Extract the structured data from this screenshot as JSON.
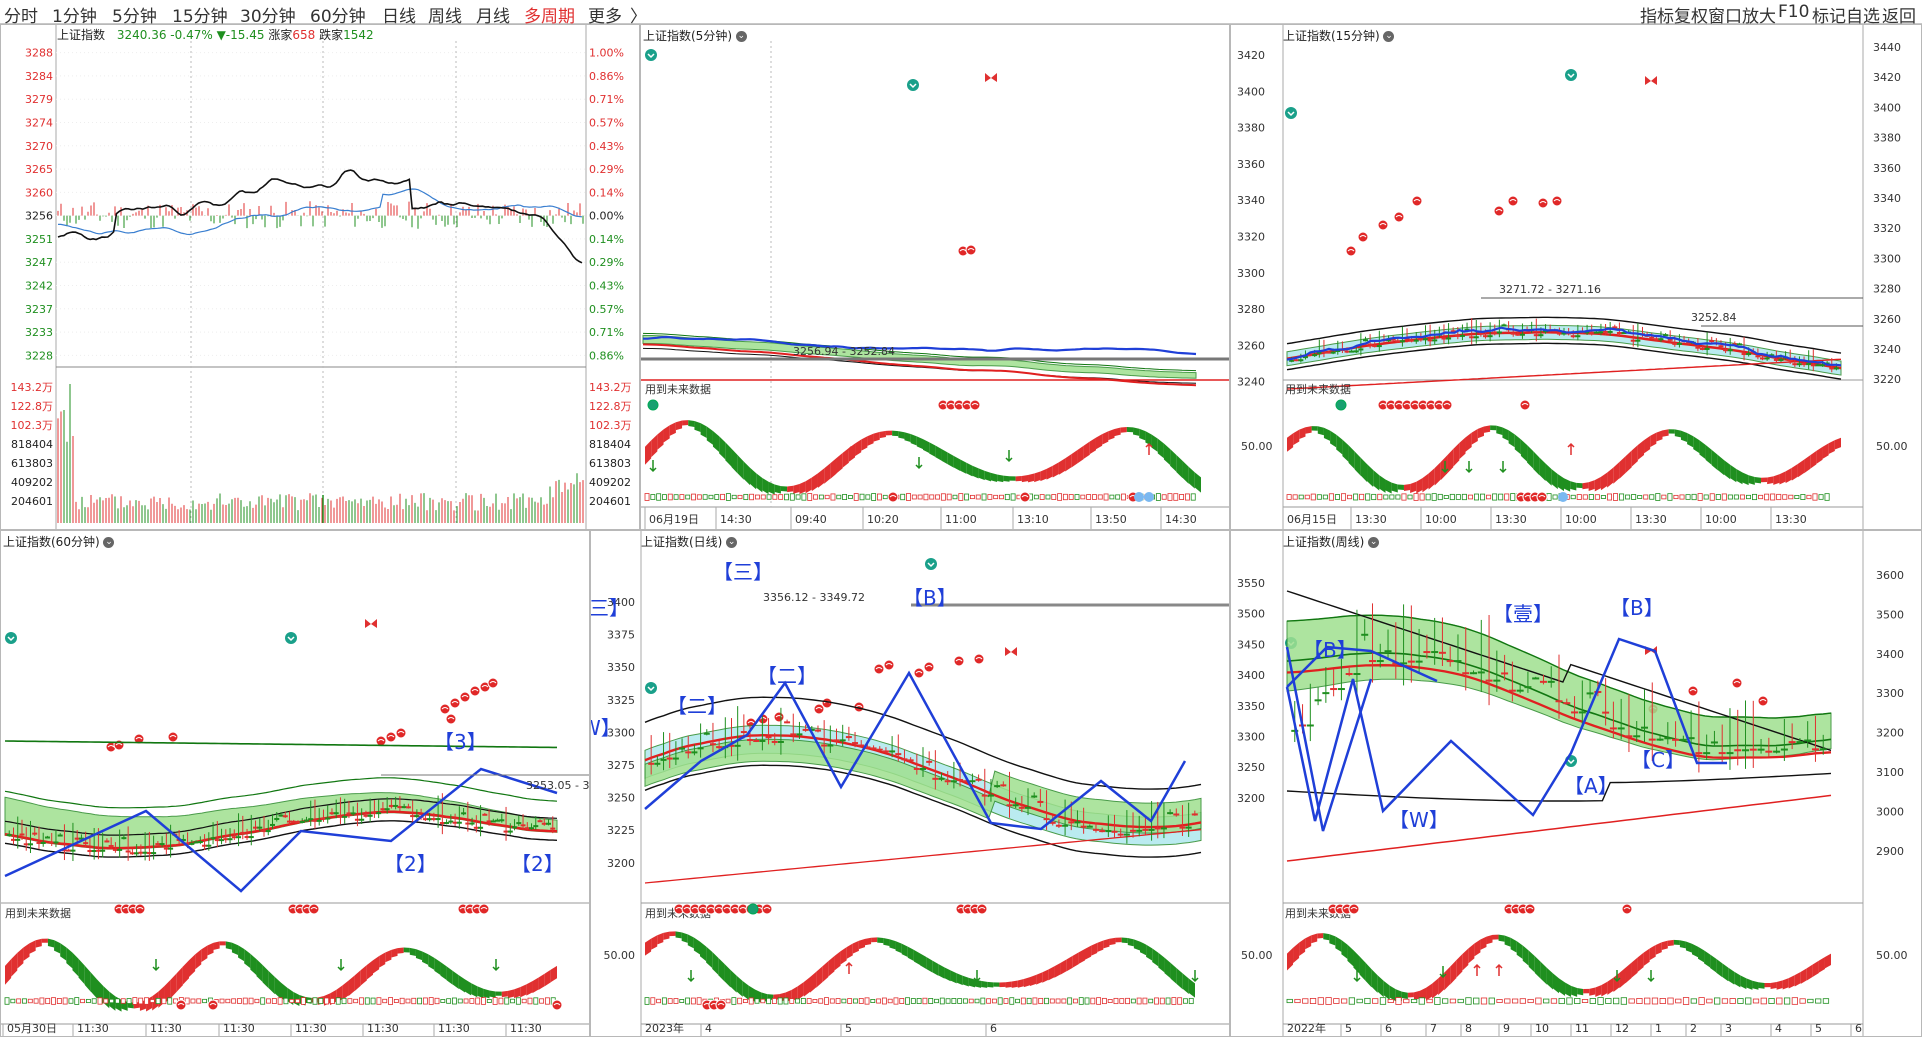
{
  "toolbar": {
    "periods": [
      "分时",
      "1分钟",
      "5分钟",
      "15分钟",
      "30分钟",
      "60分钟",
      "日线",
      "周线",
      "月线",
      "多周期",
      "更多"
    ],
    "active": "多周期",
    "more_arrow": "〉",
    "right_tools": [
      "指标",
      "复权",
      "窗口",
      "放大",
      "F10",
      "标记",
      "自选",
      "返回"
    ]
  },
  "colors": {
    "up": "#e03030",
    "down": "#1f8f1f",
    "blue": "#1f3fd8",
    "band": "#9fe08f",
    "ma": "#e02020",
    "black": "#111111"
  },
  "icons": [
    "more-down-icon",
    "butterfly-icon",
    "down-arrow-icon",
    "up-arrow-icon",
    "coin-icon"
  ],
  "panels": {
    "intraday": {
      "title": "上证指数",
      "price": "3240.36",
      "change_pct": "-0.47%",
      "change": "▼-15.45",
      "up_label": "涨家",
      "up_count": "658",
      "down_label": "跌家",
      "down_count": "1542",
      "left_axis": [
        "3288",
        "3284",
        "3279",
        "3274",
        "3270",
        "3265",
        "3260",
        "3256",
        "3251",
        "3247",
        "3242",
        "3237",
        "3233",
        "3228"
      ],
      "right_axis": [
        "1.00%",
        "0.86%",
        "0.71%",
        "0.57%",
        "0.43%",
        "0.29%",
        "0.14%",
        "0.00%",
        "0.14%",
        "0.29%",
        "0.43%",
        "0.57%",
        "0.71%",
        "0.86%"
      ],
      "vol_axis": [
        "143.2万",
        "122.8万",
        "102.3万",
        "818404",
        "613803",
        "409202",
        "204601"
      ]
    },
    "m5": {
      "title": "上证指数(5分钟)",
      "level_label": "3256.94 - 3252.84",
      "sub_label": "用到未来数据",
      "x_labels": [
        "06月19日",
        "14:30",
        "09:40",
        "10:20",
        "11:00",
        "13:10",
        "13:50",
        "14:30"
      ]
    },
    "m15": {
      "title": "上证指数(15分钟)",
      "level_label": "3271.72 - 3271.16",
      "level_label2": "3252.84",
      "sub_label": "用到未来数据",
      "left_axis": [
        "3420",
        "3400",
        "3380",
        "3360",
        "3340",
        "3320",
        "3300",
        "3280",
        "3260",
        "3240"
      ],
      "right_axis": [
        "3440",
        "3420",
        "3400",
        "3380",
        "3360",
        "3340",
        "3320",
        "3300",
        "3280",
        "3260",
        "3240",
        "3220"
      ],
      "osc_axis": "50.00",
      "x_labels": [
        "06月15日",
        "13:30",
        "10:00",
        "13:30",
        "10:00",
        "13:30",
        "10:00",
        "13:30"
      ]
    },
    "m60": {
      "title": "上证指数(60分钟)",
      "level_label": "3253.05 - 3",
      "sub_label": "用到未来数据",
      "waves": [
        "【3】",
        "【2】",
        "【2】"
      ],
      "x_labels": [
        "05月30日",
        "11:30",
        "11:30",
        "11:30",
        "11:30",
        "11:30",
        "11:30",
        "11:30"
      ]
    },
    "daily": {
      "title": "上证指数(日线)",
      "level_label": "3356.12 - 3349.72",
      "sub_label": "用到未来数据",
      "left_axis": [
        "3400",
        "3375",
        "3350",
        "3325",
        "3300",
        "3275",
        "3250",
        "3225",
        "3200"
      ],
      "osc_axis": "50.00",
      "waves": [
        "【三】",
        "【三】",
        "【二】",
        "【二】",
        "【B】",
        "【W】"
      ],
      "x_labels": [
        "2023年",
        "4",
        "5",
        "6"
      ]
    },
    "weekly": {
      "title": "上证指数(周线)",
      "sub_label": "用到未来数据",
      "left_axis": [
        "3550",
        "3500",
        "3450",
        "3400",
        "3350",
        "3300",
        "3250",
        "3200"
      ],
      "right_axis": [
        "3600",
        "3500",
        "3400",
        "3300",
        "3200",
        "3100",
        "3000",
        "2900"
      ],
      "osc_axis": "50.00",
      "osc_axis_right": "50.00",
      "waves": [
        "【壹】",
        "【B】",
        "【B】",
        "【A】",
        "【C】",
        "【W】"
      ],
      "x_labels": [
        "2022年",
        "5",
        "6",
        "7",
        "8",
        "9",
        "10",
        "11",
        "12",
        "1",
        "2",
        "3",
        "4",
        "5",
        "6"
      ]
    }
  }
}
